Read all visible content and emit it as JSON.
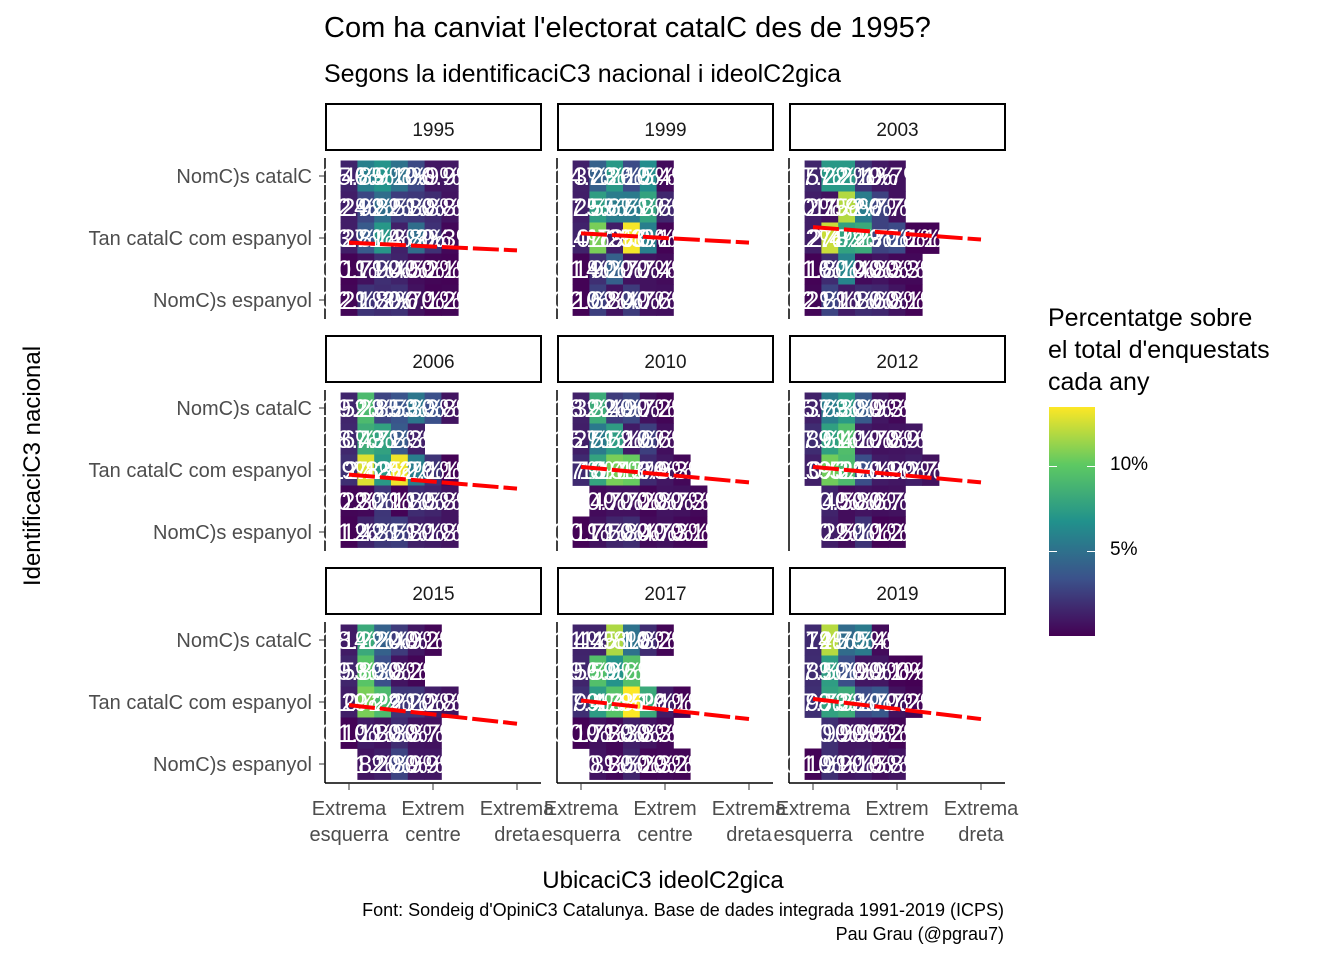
{
  "title": "Com ha canviat l'electorat catalC  des de 1995?",
  "subtitle": "Segons la identificaciC3 nacional i ideolC2gica",
  "caption": {
    "line1": "Font: Sondeig d'OpiniC3 Catalunya. Base de dades integrada 1991-2019 (ICPS)",
    "line2": "Pau Grau (@pgrau7)"
  },
  "chart_data": {
    "type": "heatmap",
    "xlabel": "UbicaciC3 ideolC2gica",
    "ylabel": "IdentificaciC3 nacional",
    "x_categories": [
      "Extrema esquerra",
      "",
      "",
      "",
      "",
      "Extrem centre",
      "",
      "",
      "",
      "",
      "Extrema dreta"
    ],
    "x_tick_labels": [
      {
        "index": 0,
        "lines": [
          "Extrema",
          "esquerra"
        ]
      },
      {
        "index": 5,
        "lines": [
          "Extrem",
          "centre"
        ]
      },
      {
        "index": 10,
        "lines": [
          "Extrema",
          "dreta"
        ]
      }
    ],
    "y_categories": [
      "NomC)s catalC",
      "",
      "Tan catalC  com espanyol",
      "",
      "NomC)s espanyol"
    ],
    "y_tick_labels": [
      "NomC)s catalC",
      "Tan catalC  com espanyol",
      "NomC)s espanyol"
    ],
    "legend": {
      "title_lines": [
        "Percentatge sobre",
        "el total d'enquestats",
        "cada any"
      ],
      "ticks": [
        "5%",
        "10%"
      ],
      "tick_values": [
        5,
        10
      ],
      "range": [
        0,
        13.5
      ],
      "palette": "viridis"
    },
    "panels": [
      {
        "year": "1995",
        "values": [
          [
            1.4,
            5.8,
            6.9,
            5.1,
            3,
            0.9,
            0.9,
            null,
            null,
            null,
            null
          ],
          [
            1.2,
            2.9,
            4.8,
            2.5,
            2.3,
            1.8,
            0.8,
            null,
            null,
            null,
            null
          ],
          [
            1.2,
            3.8,
            7.1,
            1.3,
            4.8,
            2,
            0.3,
            null,
            null,
            null,
            null
          ],
          [
            0.1,
            0.7,
            1.9,
            1.4,
            0.5,
            0.2,
            0.1,
            null,
            null,
            null,
            null
          ],
          [
            0.2,
            2.1,
            1.8,
            2,
            0.7,
            0.1,
            0.2,
            null,
            null,
            null,
            null
          ]
        ],
        "trend": [
          2.15,
          2.4
        ]
      },
      {
        "year": "1999",
        "values": [
          [
            1.3,
            4.2,
            7.2,
            3.1,
            6.5,
            0.4,
            null,
            null,
            null,
            null,
            null
          ],
          [
            1.2,
            7.5,
            5.6,
            5.5,
            7.8,
            1.6,
            null,
            null,
            null,
            null,
            null
          ],
          [
            1.4,
            10.7,
            1.2,
            13.3,
            5.8,
            0.1,
            null,
            null,
            null,
            null,
            null
          ],
          [
            0.1,
            1.9,
            4.2,
            0.7,
            0.7,
            0.4,
            null,
            null,
            null,
            null,
            null
          ],
          [
            0.1,
            2.6,
            0.8,
            2.4,
            0.7,
            0.6,
            null,
            null,
            null,
            null,
            null
          ]
        ],
        "trend": [
          1.85,
          2.15
        ]
      },
      {
        "year": "2003",
        "values": [
          [
            1.5,
            7.2,
            7.2,
            2.1,
            1,
            0.7,
            null,
            null,
            null,
            null,
            null
          ],
          [
            1.2,
            0.7,
            11.9,
            5.6,
            2.7,
            0.7,
            null,
            null,
            null,
            null,
            null
          ],
          [
            1.2,
            12.4,
            7.7,
            8.2,
            2.7,
            3.1,
            0.1,
            0.1,
            null,
            null,
            null
          ],
          [
            0.1,
            1.8,
            6.1,
            0.4,
            0.8,
            0.3,
            0.3,
            null,
            null,
            null,
            null
          ],
          [
            0.2,
            2.8,
            1.1,
            1.8,
            1.6,
            0.8,
            0.1,
            null,
            null,
            null,
            null
          ]
        ],
        "trend": [
          1.65,
          2.05
        ]
      },
      {
        "year": "2006",
        "values": [
          [
            1.5,
            9.2,
            2.8,
            3.5,
            5.3,
            3.3,
            0.8,
            null,
            null,
            null,
            null
          ],
          [
            1.6,
            8.4,
            7.7,
            3.8,
            1.3,
            null,
            null,
            null,
            null,
            null,
            null
          ],
          [
            1.9,
            12.8,
            7.2,
            13.2,
            5.7,
            2.1,
            0.1,
            null,
            null,
            null,
            null
          ],
          [
            0.2,
            0.3,
            2.2,
            0.1,
            1.8,
            1.5,
            0.8,
            null,
            null,
            null,
            null
          ],
          [
            0.1,
            1.4,
            2.3,
            2.5,
            1.3,
            1.1,
            0.8,
            null,
            null,
            null,
            null
          ]
        ],
        "trend": [
          2.15,
          2.6
        ]
      },
      {
        "year": "2010",
        "values": [
          [
            1.3,
            8.3,
            2.4,
            2.9,
            0.7,
            0.2,
            null,
            null,
            null,
            null,
            null
          ],
          [
            1.2,
            5.5,
            7.5,
            1.1,
            2.6,
            0.6,
            null,
            null,
            null,
            null,
            null
          ],
          [
            1.7,
            7.8,
            10.7,
            10.3,
            1.7,
            0.9,
            0.3,
            null,
            null,
            null,
            null
          ],
          [
            null,
            0.4,
            0.7,
            0.7,
            0.2,
            0.8,
            0.7,
            0.3,
            null,
            null,
            null
          ],
          [
            0.1,
            0.7,
            1.5,
            1.8,
            0.4,
            0.7,
            0.3,
            0.1,
            null,
            null,
            null
          ]
        ],
        "trend": [
          1.9,
          2.4
        ]
      },
      {
        "year": "2012",
        "values": [
          [
            1.3,
            5.6,
            7.3,
            3.8,
            0.9,
            0.3,
            null,
            null,
            null,
            null,
            null
          ],
          [
            1.8,
            7.6,
            9.4,
            1.1,
            0.7,
            0.8,
            0.9,
            null,
            null,
            null,
            null
          ],
          [
            1.3,
            10.5,
            9.2,
            3.2,
            1.1,
            0.9,
            1.2,
            0.7,
            null,
            null,
            null
          ],
          [
            null,
            1.4,
            0.5,
            0.8,
            0.6,
            0.7,
            null,
            null,
            null,
            null,
            null
          ],
          [
            null,
            1.2,
            0.5,
            2.1,
            0.1,
            0.2,
            null,
            null,
            null,
            null,
            null
          ]
        ],
        "trend": [
          1.9,
          2.4
        ]
      },
      {
        "year": "2015",
        "values": [
          [
            1.1,
            8.2,
            4.2,
            2.4,
            0.9,
            0.2,
            null,
            null,
            null,
            null,
            null
          ],
          [
            1.5,
            9.8,
            3.3,
            0.8,
            0.2,
            null,
            null,
            null,
            null,
            null,
            null
          ],
          [
            1.2,
            10.7,
            9.2,
            2.2,
            2.2,
            1.2,
            0.8,
            null,
            null,
            null,
            null
          ],
          [
            0.1,
            1.1,
            0.8,
            1.8,
            0.8,
            0.7,
            null,
            null,
            null,
            null,
            null
          ],
          [
            null,
            0.8,
            1.2,
            2.8,
            0.9,
            0.9,
            null,
            null,
            null,
            null,
            null
          ]
        ],
        "trend": [
          2.1,
          2.7
        ]
      },
      {
        "year": "2017",
        "values": [
          [
            1.4,
            1.4,
            11.8,
            5.1,
            1.8,
            0.2,
            null,
            null,
            null,
            null,
            null
          ],
          [
            1.5,
            9.5,
            6.9,
            9.6,
            null,
            null,
            null,
            null,
            null,
            null,
            null
          ],
          [
            1.9,
            7.4,
            9.7,
            13.5,
            8.2,
            1.1,
            0.1,
            null,
            null,
            null,
            null
          ],
          [
            0.1,
            0.7,
            0.3,
            1.3,
            0.8,
            0.3,
            null,
            null,
            null,
            null,
            null
          ],
          [
            null,
            0.8,
            0.3,
            1.5,
            0.2,
            0.3,
            0.2,
            null,
            null,
            null,
            null
          ]
        ],
        "trend": [
          1.95,
          2.55
        ]
      },
      {
        "year": "2019",
        "values": [
          [
            1.7,
            12,
            4.7,
            5.5,
            0.4,
            null,
            null,
            null,
            null,
            null,
            null
          ],
          [
            1.8,
            7.5,
            3.2,
            0.9,
            0.9,
            0.1,
            0,
            null,
            null,
            null,
            null
          ],
          [
            1.9,
            7.7,
            8.3,
            3.1,
            3.7,
            0.7,
            0.2,
            null,
            null,
            null,
            null
          ],
          [
            null,
            1.9,
            0.9,
            0.9,
            0.5,
            0.2,
            null,
            null,
            null,
            null,
            null
          ],
          [
            0.1,
            1.9,
            0.9,
            1.1,
            0.5,
            0.8,
            null,
            null,
            null,
            null,
            null
          ]
        ],
        "trend": [
          1.9,
          2.55
        ]
      }
    ]
  }
}
